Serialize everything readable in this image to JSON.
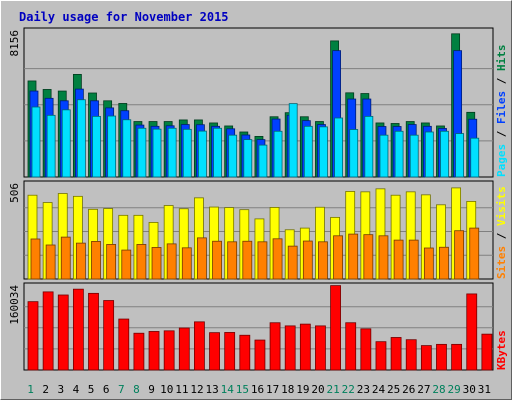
{
  "chart_data": {
    "type": "bar",
    "title": "Daily usage for November 2015",
    "categories": [
      "1",
      "2",
      "3",
      "4",
      "5",
      "6",
      "7",
      "8",
      "9",
      "10",
      "11",
      "12",
      "13",
      "14",
      "15",
      "16",
      "17",
      "18",
      "19",
      "20",
      "21",
      "22",
      "23",
      "24",
      "25",
      "26",
      "27",
      "28",
      "29",
      "30",
      "31"
    ],
    "weekend_days": [
      "1",
      "7",
      "8",
      "14",
      "15",
      "21",
      "22",
      "28",
      "29"
    ],
    "panels": [
      {
        "name": "hits-files-pages",
        "ymax_label": "8156",
        "ylim": [
          0,
          8156
        ],
        "legend": [
          "Pages",
          "Files",
          "Hits"
        ],
        "legend_separator": "/",
        "series": [
          {
            "name": "Hits",
            "color": "#008040",
            "values": [
              5420,
              4940,
              4850,
              5790,
              4740,
              4300,
              4150,
              3130,
              3130,
              3130,
              3220,
              3220,
              3050,
              2880,
              2540,
              2290,
              3400,
              3630,
              3400,
              3130,
              7680,
              4750,
              4710,
              3050,
              3020,
              3130,
              3050,
              2880,
              8080,
              3650,
              0
            ]
          },
          {
            "name": "Files",
            "color": "#0040ff",
            "values": [
              4850,
              4440,
              4300,
              4960,
              4300,
              3900,
              3740,
              2930,
              2860,
              2890,
              2960,
              2950,
              2860,
              2720,
              2370,
              2110,
              3270,
              3480,
              3180,
              2960,
              7130,
              4400,
              4400,
              2850,
              2850,
              2960,
              2860,
              2740,
              7130,
              3260,
              0
            ]
          },
          {
            "name": "Pages",
            "color": "#00e0ff",
            "values": [
              3950,
              3480,
              3790,
              4360,
              3420,
              3440,
              3230,
              2750,
              2700,
              2750,
              2690,
              2590,
              2750,
              2360,
              2110,
              1800,
              2580,
              4140,
              2860,
              2830,
              3330,
              2680,
              3420,
              2360,
              2580,
              2360,
              2540,
              2580,
              2450,
              2190,
              0
            ]
          }
        ]
      },
      {
        "name": "visits-sites",
        "ymax_label": "506",
        "ylim": [
          0,
          506
        ],
        "legend": [
          "Sites",
          "Visits"
        ],
        "legend_separator": "/",
        "series": [
          {
            "name": "Visits",
            "color": "#ffff00",
            "values": [
              446,
              407,
              455,
              440,
              371,
              375,
              339,
              339,
              301,
              391,
              374,
              432,
              383,
              380,
              369,
              320,
              381,
              262,
              271,
              382,
              328,
              466,
              464,
              480,
              446,
              464,
              448,
              395,
              485,
              413,
              0
            ]
          },
          {
            "name": "Sites",
            "color": "#ff8000",
            "values": [
              213,
              181,
              223,
              191,
              200,
              184,
              154,
              184,
              168,
              187,
              166,
              219,
              201,
              198,
              201,
              198,
              214,
              175,
              202,
              198,
              230,
              239,
              236,
              230,
              207,
              207,
              165,
              169,
              257,
              271,
              0
            ]
          }
        ]
      },
      {
        "name": "kbytes",
        "ymax_label": "160034",
        "ylim": [
          0,
          160034
        ],
        "legend": [
          "KBytes"
        ],
        "legend_separator": "/",
        "series": [
          {
            "name": "KBytes",
            "color": "#ff0000",
            "values": [
              129610,
              148160,
              142250,
              153290,
              145370,
              131770,
              96620,
              69750,
              73090,
              74290,
              79650,
              91330,
              70840,
              71210,
              65910,
              56790,
              89640,
              83690,
              87020,
              83690,
              160034,
              89640,
              78040,
              53720,
              61690,
              57460,
              46300,
              48630,
              48630,
              144260,
              68000
            ]
          }
        ]
      }
    ]
  }
}
